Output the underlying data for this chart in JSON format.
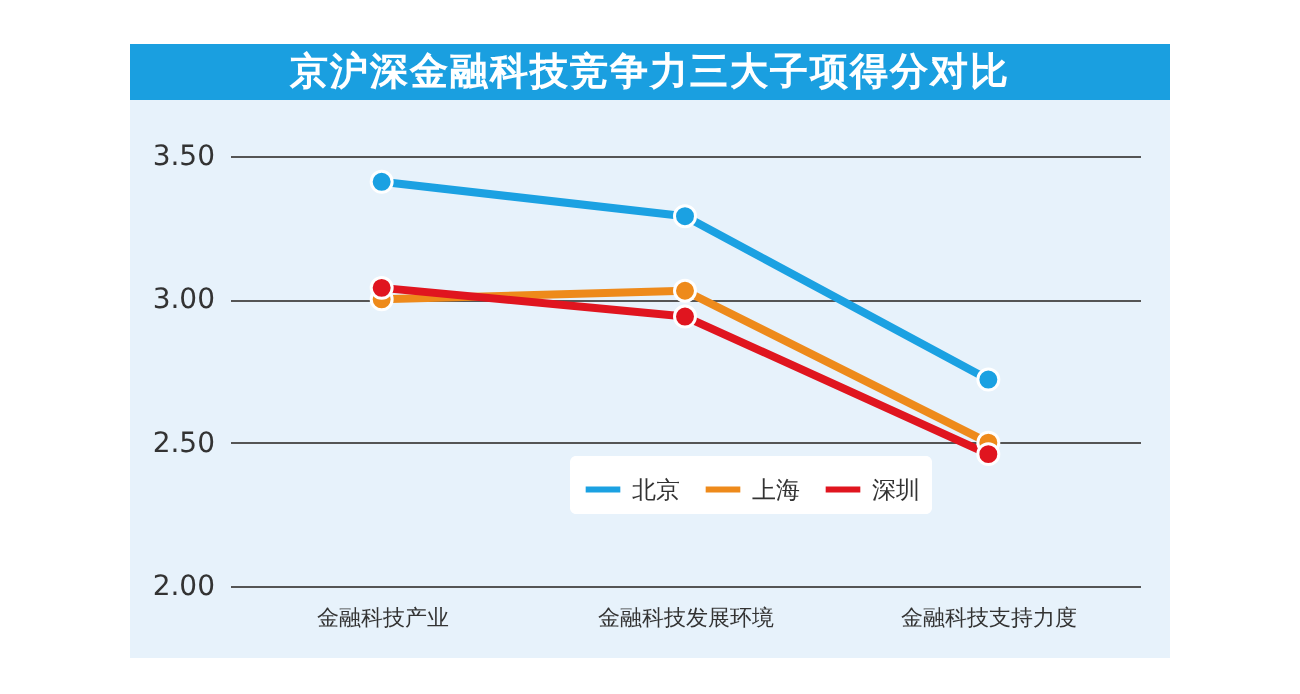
{
  "chart_data": {
    "type": "line",
    "title": "京沪深金融科技竞争力三大子项得分对比",
    "categories": [
      "金融科技产业",
      "金融科技发展环境",
      "金融科技支持力度"
    ],
    "series": [
      {
        "name": "北京",
        "color": "#1ba1e2",
        "values": [
          3.41,
          3.29,
          2.72
        ]
      },
      {
        "name": "上海",
        "color": "#ee8a1b",
        "values": [
          3.0,
          3.03,
          2.5
        ]
      },
      {
        "name": "深圳",
        "color": "#e0151f",
        "values": [
          3.04,
          2.94,
          2.46
        ]
      }
    ],
    "ylim": [
      2.0,
      3.5
    ],
    "yticks": [
      {
        "value": 2,
        "label": "2.00"
      },
      {
        "value": 2.5,
        "label": "2.50"
      },
      {
        "value": 3,
        "label": "3.00"
      },
      {
        "value": 3.5,
        "label": "3.50"
      }
    ],
    "grid": "y",
    "legend": "bottom",
    "marker": "circle",
    "line_style": "solid"
  }
}
